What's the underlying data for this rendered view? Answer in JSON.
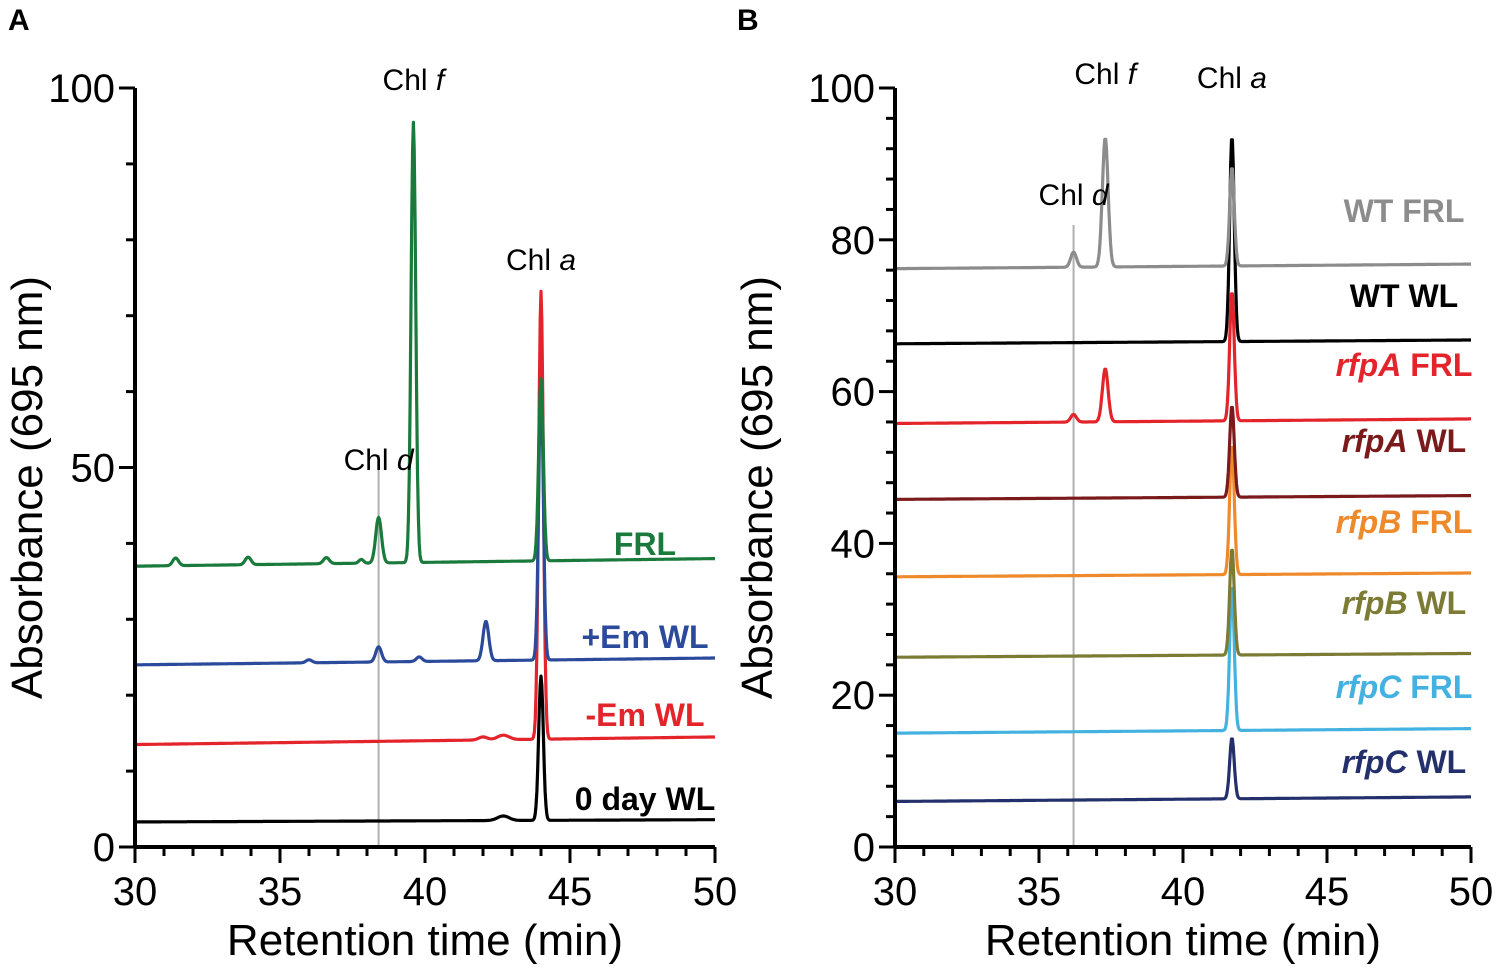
{
  "chart_data": [
    {
      "panel": "A",
      "type": "line",
      "xlabel": "Retention time (min)",
      "ylabel": "Absorbance (695 nm)",
      "xlim": [
        30,
        50
      ],
      "ylim": [
        0,
        100
      ],
      "x_ticks": [
        30,
        35,
        40,
        45,
        50
      ],
      "y_ticks": [
        0,
        50,
        100
      ],
      "y_tick_labels": [
        "0",
        "50",
        "100"
      ],
      "reference_line_x": 38.4,
      "peak_labels": [
        {
          "text": "Chl ",
          "italic": "d",
          "x": 38.4
        },
        {
          "text": "Chl ",
          "italic": "f",
          "x": 39.6
        },
        {
          "text": "Chl ",
          "italic": "a",
          "x": 44.0
        }
      ],
      "series": [
        {
          "name": "FRL",
          "label_parts": [
            {
              "text": "FRL",
              "italic": false
            }
          ],
          "color": "#1a7a3c",
          "baseline": [
            37.0,
            38.0
          ],
          "peaks": [
            [
              31.4,
              1.0,
              0.1
            ],
            [
              33.9,
              1.0,
              0.1
            ],
            [
              36.6,
              0.8,
              0.1
            ],
            [
              37.8,
              0.5,
              0.08
            ],
            [
              38.4,
              6.0,
              0.1
            ],
            [
              39.6,
              58.0,
              0.08
            ],
            [
              44.0,
              24.0,
              0.08
            ]
          ]
        },
        {
          "name": "+Em WL",
          "label_parts": [
            {
              "text": "+Em WL",
              "italic": false
            }
          ],
          "color": "#2b4a9c",
          "baseline": [
            24.0,
            24.9
          ],
          "peaks": [
            [
              36.0,
              0.4,
              0.1
            ],
            [
              38.4,
              2.0,
              0.1
            ],
            [
              39.8,
              0.6,
              0.1
            ],
            [
              42.1,
              5.2,
              0.1
            ],
            [
              44.0,
              36.0,
              0.08
            ]
          ]
        },
        {
          "name": "-Em WL",
          "label_parts": [
            {
              "text": "-Em WL",
              "italic": false
            }
          ],
          "color": "#e3242b",
          "baseline": [
            13.5,
            14.5
          ],
          "peaks": [
            [
              42.0,
              0.4,
              0.15
            ],
            [
              42.7,
              0.6,
              0.2
            ],
            [
              44.0,
              59.0,
              0.08
            ]
          ]
        },
        {
          "name": "0 day WL",
          "label_parts": [
            {
              "text": "0 day WL",
              "italic": false
            }
          ],
          "color": "#000000",
          "baseline": [
            3.3,
            3.6
          ],
          "peaks": [
            [
              42.7,
              0.6,
              0.2
            ],
            [
              44.0,
              19.0,
              0.08
            ]
          ]
        }
      ]
    },
    {
      "panel": "B",
      "type": "line",
      "xlabel": "Retention time (min)",
      "ylabel": "Absorbance (695 nm)",
      "xlim": [
        30,
        50
      ],
      "ylim": [
        0,
        100
      ],
      "x_ticks": [
        30,
        35,
        40,
        45,
        50
      ],
      "y_ticks": [
        0,
        20,
        40,
        60,
        80,
        100
      ],
      "y_tick_labels": [
        "0",
        "20",
        "40",
        "60",
        "80",
        "100"
      ],
      "reference_line_x": 36.2,
      "peak_labels": [
        {
          "text": "Chl ",
          "italic": "d",
          "x": 36.2
        },
        {
          "text": "Chl ",
          "italic": "f",
          "x": 37.3
        },
        {
          "text": "Chl ",
          "italic": "a",
          "x": 41.7
        }
      ],
      "series": [
        {
          "name": "WT FRL",
          "label_parts": [
            {
              "text": "WT FRL",
              "italic": false
            }
          ],
          "color": "#8c8c8c",
          "baseline": [
            76.2,
            76.8
          ],
          "peaks": [
            [
              36.2,
              2.0,
              0.1
            ],
            [
              37.3,
              17.0,
              0.1
            ],
            [
              41.7,
              13.0,
              0.08
            ]
          ]
        },
        {
          "name": "WT WL",
          "label_parts": [
            {
              "text": "WT WL",
              "italic": false
            }
          ],
          "color": "#000000",
          "baseline": [
            66.3,
            66.8
          ],
          "peaks": [
            [
              41.7,
              27.0,
              0.08
            ]
          ]
        },
        {
          "name": "rfpA FRL",
          "label_parts": [
            {
              "text": "rfpA",
              "italic": true
            },
            {
              "text": " FRL",
              "italic": false
            }
          ],
          "color": "#e3242b",
          "baseline": [
            55.8,
            56.4
          ],
          "peaks": [
            [
              36.2,
              1.0,
              0.1
            ],
            [
              37.3,
              7.0,
              0.1
            ],
            [
              41.7,
              17.0,
              0.08
            ]
          ]
        },
        {
          "name": "rfpA WL",
          "label_parts": [
            {
              "text": "rfpA",
              "italic": true
            },
            {
              "text": " WL",
              "italic": false
            }
          ],
          "color": "#7b1a1a",
          "baseline": [
            45.8,
            46.3
          ],
          "peaks": [
            [
              41.7,
              12.0,
              0.08
            ]
          ]
        },
        {
          "name": "rfpB FRL",
          "label_parts": [
            {
              "text": "rfpB",
              "italic": true
            },
            {
              "text": " FRL",
              "italic": false
            }
          ],
          "color": "#ef8a2c",
          "baseline": [
            35.6,
            36.1
          ],
          "peaks": [
            [
              41.7,
              17.0,
              0.08
            ]
          ]
        },
        {
          "name": "rfpB WL",
          "label_parts": [
            {
              "text": "rfpB",
              "italic": true
            },
            {
              "text": " WL",
              "italic": false
            }
          ],
          "color": "#7b7b34",
          "baseline": [
            25.0,
            25.5
          ],
          "peaks": [
            [
              41.7,
              14.0,
              0.08
            ]
          ]
        },
        {
          "name": "rfpC FRL",
          "label_parts": [
            {
              "text": "rfpC",
              "italic": true
            },
            {
              "text": " FRL",
              "italic": false
            }
          ],
          "color": "#44b2e0",
          "baseline": [
            15.0,
            15.6
          ],
          "peaks": [
            [
              41.7,
              19.0,
              0.08
            ]
          ]
        },
        {
          "name": "rfpC WL",
          "label_parts": [
            {
              "text": "rfpC",
              "italic": true
            },
            {
              "text": " WL",
              "italic": false
            }
          ],
          "color": "#23306b",
          "baseline": [
            6.0,
            6.6
          ],
          "peaks": [
            [
              41.7,
              8.0,
              0.08
            ]
          ]
        }
      ]
    }
  ],
  "panel_letters": [
    "A",
    "B"
  ]
}
